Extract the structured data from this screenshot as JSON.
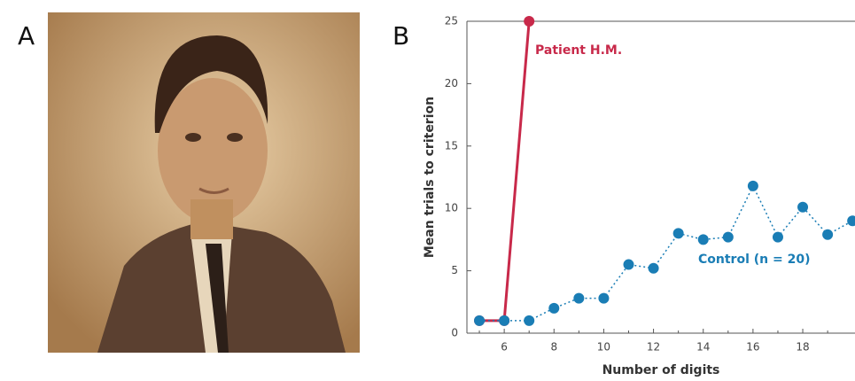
{
  "panel_labels": [
    "A",
    "B"
  ],
  "chart_data": {
    "type": "line",
    "xlabel": "Number of digits",
    "ylabel": "Mean trials to criterion",
    "x": [
      5,
      6,
      7,
      8,
      9,
      10,
      11,
      12,
      13,
      14,
      15,
      16,
      17,
      18,
      19,
      20
    ],
    "series": [
      {
        "name": "Patient H.M.",
        "color": "#c8294a",
        "dashed": false,
        "values": [
          1,
          1,
          25,
          null,
          null,
          null,
          null,
          null,
          null,
          null,
          null,
          null,
          null,
          null,
          null,
          null
        ]
      },
      {
        "name": "Control (n = 20)",
        "color": "#1a7db5",
        "dashed": true,
        "values": [
          1,
          1,
          1,
          2,
          2.8,
          2.8,
          5.5,
          5.2,
          8,
          7.5,
          7.7,
          11.8,
          7.7,
          10.1,
          7.9,
          9
        ]
      }
    ],
    "xlim": [
      4.5,
      20.1
    ],
    "ylim": [
      0,
      25
    ],
    "xticks": [
      6,
      8,
      10,
      12,
      14,
      16,
      18
    ],
    "xminorticks": [
      5,
      7,
      9,
      11,
      13,
      15,
      17,
      19
    ],
    "yticks": [
      0,
      5,
      10,
      15,
      20,
      25
    ]
  }
}
